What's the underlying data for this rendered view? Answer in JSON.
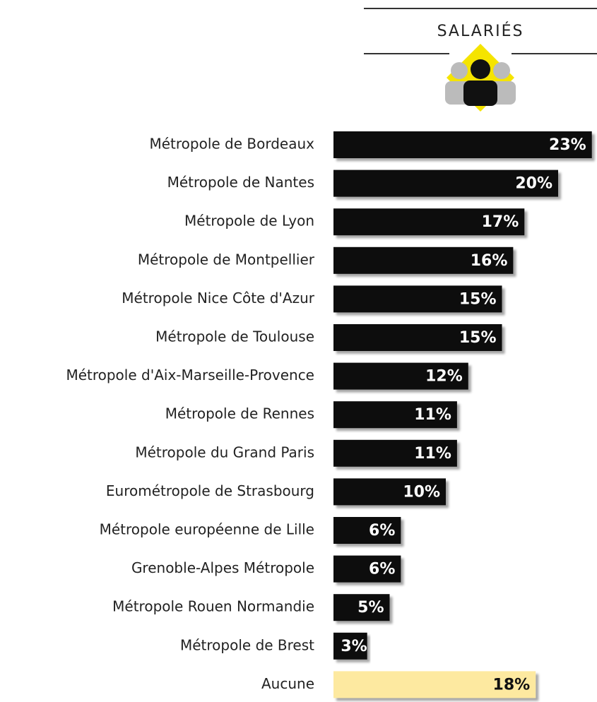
{
  "chart_data": {
    "type": "barh",
    "title": "SALARIÉS",
    "categories": [
      "Métropole de Bordeaux",
      "Métropole de Nantes",
      "Métropole de Lyon",
      "Métropole de Montpellier",
      "Métropole Nice Côte d'Azur",
      "Métropole de Toulouse",
      "Métropole d'Aix-Marseille-Provence",
      "Métropole de Rennes",
      "Métropole du Grand Paris",
      "Eurométropole de Strasbourg",
      "Métropole européenne de Lille",
      "Grenoble-Alpes Métropole",
      "Métropole Rouen Normandie",
      "Métropole de Brest",
      "Aucune"
    ],
    "values": [
      23,
      20,
      17,
      16,
      15,
      15,
      12,
      11,
      11,
      10,
      6,
      6,
      5,
      3,
      18
    ],
    "value_labels": [
      "23%",
      "20%",
      "17%",
      "16%",
      "15%",
      "15%",
      "12%",
      "11%",
      "11%",
      "10%",
      "6%",
      "6%",
      "5%",
      "3%",
      "18%"
    ],
    "colors": [
      "#111111",
      "#111111",
      "#111111",
      "#111111",
      "#111111",
      "#111111",
      "#111111",
      "#111111",
      "#111111",
      "#111111",
      "#111111",
      "#111111",
      "#111111",
      "#111111",
      "#fde9a0"
    ]
  }
}
